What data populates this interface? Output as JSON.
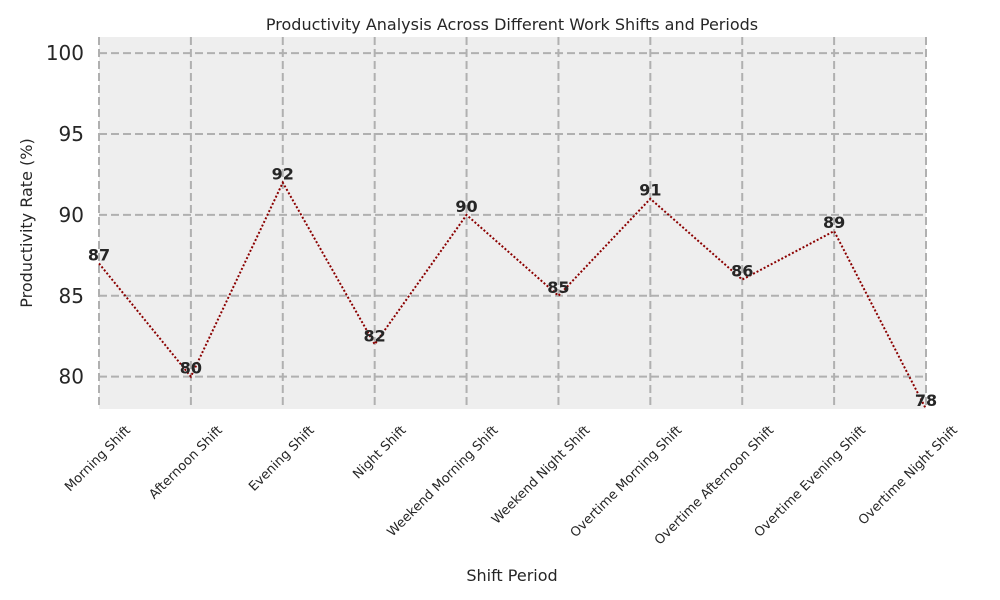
{
  "chart_data": {
    "type": "line",
    "title": "Productivity Analysis Across Different Work Shifts and Periods",
    "xlabel": "Shift Period",
    "ylabel": "Productivity Rate (%)",
    "categories": [
      "Morning Shift",
      "Afternoon Shift",
      "Evening Shift",
      "Night Shift",
      "Weekend Morning Shift",
      "Weekend Night Shift",
      "Overtime Morning Shift",
      "Overtime Afternoon Shift",
      "Overtime Evening Shift",
      "Overtime Night Shift"
    ],
    "series": [
      {
        "values": [
          87,
          80,
          92,
          82,
          90,
          85,
          91,
          86,
          89,
          78
        ]
      }
    ],
    "ylim": [
      78,
      101
    ],
    "yticks": [
      80,
      85,
      90,
      95,
      100
    ],
    "grid": true,
    "line_style": "dotted",
    "colors": {
      "line": "#8b0000",
      "plot_bg": "#eeeeee",
      "grid": "#b0b0b0"
    }
  }
}
